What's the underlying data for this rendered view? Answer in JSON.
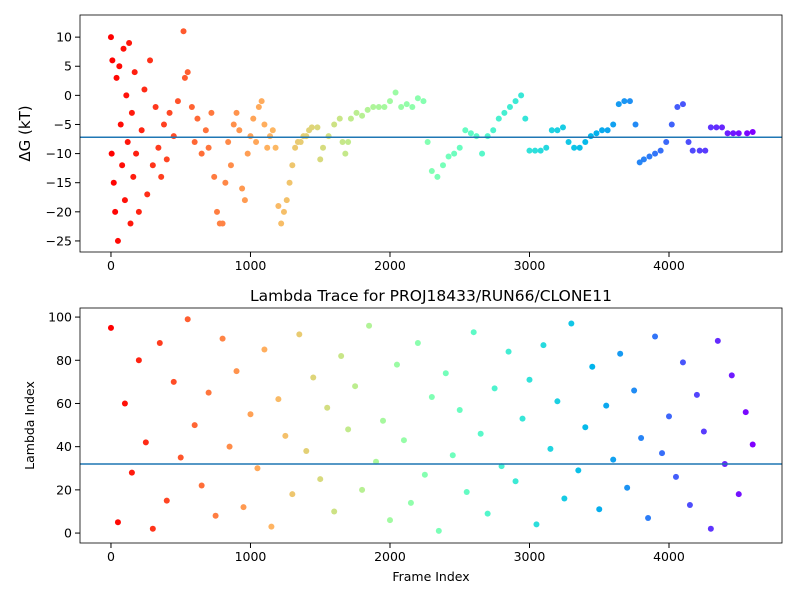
{
  "chart_data": [
    {
      "type": "scatter",
      "ylabel": "ΔG (kT)",
      "colormap": "rainbow_r",
      "hline": {
        "value": -7.2,
        "color": "#1f77b4"
      },
      "xlim": [
        -222,
        4810
      ],
      "ylim": [
        -26.9,
        13.8
      ],
      "xticks": [
        0,
        1000,
        2000,
        3000,
        4000
      ],
      "yticks": [
        10,
        5,
        0,
        {
          "value": -5,
          "label": "−5"
        },
        {
          "value": -10,
          "label": "−10"
        },
        {
          "value": -15,
          "label": "−15"
        },
        {
          "value": -20,
          "label": "−20"
        },
        {
          "value": -25,
          "label": "−25"
        }
      ],
      "x": [
        0,
        5,
        10,
        20,
        30,
        40,
        50,
        60,
        70,
        80,
        90,
        100,
        110,
        120,
        130,
        140,
        150,
        160,
        170,
        180,
        200,
        220,
        240,
        260,
        280,
        300,
        320,
        340,
        360,
        380,
        400,
        420,
        450,
        480,
        520,
        530,
        550,
        580,
        600,
        620,
        650,
        680,
        700,
        720,
        740,
        760,
        780,
        800,
        820,
        840,
        860,
        880,
        900,
        920,
        940,
        960,
        980,
        1000,
        1020,
        1040,
        1060,
        1080,
        1100,
        1120,
        1140,
        1160,
        1180,
        1200,
        1220,
        1240,
        1260,
        1280,
        1300,
        1320,
        1340,
        1360,
        1380,
        1400,
        1420,
        1440,
        1480,
        1500,
        1520,
        1560,
        1600,
        1640,
        1660,
        1680,
        1700,
        1720,
        1760,
        1800,
        1840,
        1880,
        1920,
        1960,
        2000,
        2040,
        2080,
        2120,
        2160,
        2200,
        2240,
        2270,
        2300,
        2340,
        2380,
        2420,
        2460,
        2500,
        2540,
        2580,
        2620,
        2660,
        2700,
        2740,
        2780,
        2820,
        2860,
        2900,
        2940,
        2970,
        3000,
        3040,
        3080,
        3120,
        3160,
        3200,
        3240,
        3280,
        3320,
        3360,
        3400,
        3440,
        3480,
        3520,
        3560,
        3600,
        3640,
        3680,
        3720,
        3760,
        3790,
        3820,
        3860,
        3900,
        3940,
        3980,
        4020,
        4060,
        4100,
        4140,
        4170,
        4220,
        4260,
        4300,
        4340,
        4380,
        4420,
        4460,
        4500,
        4560,
        4600
      ],
      "values": [
        10,
        -10,
        6,
        -15,
        -20,
        3,
        -25,
        5,
        -5,
        -12,
        8,
        -18,
        0,
        -8,
        9,
        -22,
        -3,
        -14,
        4,
        -10,
        -20,
        -6,
        1,
        -17,
        6,
        -12,
        -2,
        -9,
        -14,
        -5,
        -11,
        -3,
        -7,
        -1,
        11,
        3,
        4,
        -2,
        -8,
        -4,
        -10,
        -6,
        -9,
        -3,
        -14,
        -20,
        -22,
        -22,
        -15,
        -8,
        -12,
        -5,
        -3,
        -6,
        -16,
        -18,
        -10,
        -7,
        -4,
        -8,
        -2,
        -1,
        -5,
        -9,
        -7,
        -6,
        -9,
        -19,
        -22,
        -20,
        -18,
        -15,
        -12,
        -9,
        -8,
        -8,
        -7,
        -7,
        -6,
        -5.5,
        -5.5,
        -11,
        -9,
        -7,
        -5,
        -4,
        -8,
        -10,
        -8,
        -4,
        -3,
        -3.5,
        -2.5,
        -2,
        -2,
        -2,
        -1,
        0.5,
        -2,
        -1.5,
        -2,
        -0.5,
        -1,
        -8,
        -13,
        -14,
        -12,
        -10.5,
        -10,
        -9,
        -6,
        -6.5,
        -7,
        -10,
        -7,
        -6,
        -4,
        -3,
        -2,
        -1,
        0,
        -4,
        -9.5,
        -9.5,
        -9.5,
        -9,
        -6,
        -6,
        -5.5,
        -8,
        -9,
        -9,
        -8,
        -7,
        -6.5,
        -6,
        -6,
        -5,
        -1.5,
        -1,
        -1,
        -5,
        -11.5,
        -11,
        -10.5,
        -10,
        -9.5,
        -8,
        -5,
        -2,
        -1.5,
        -8,
        -9.5,
        -9.5,
        -9.5,
        -5.5,
        -5.5,
        -5.5,
        -6.5,
        -6.5,
        -6.5,
        -6.5,
        -6.3
      ]
    },
    {
      "type": "scatter",
      "title": "Lambda Trace for PROJ18433/RUN66/CLONE11",
      "xlabel": "Frame Index",
      "ylabel": "Lambda Index",
      "colormap": "rainbow_r",
      "hline": {
        "value": 32,
        "color": "#1f77b4"
      },
      "xlim": [
        -222,
        4810
      ],
      "ylim": [
        -4.6,
        104.2
      ],
      "xticks": [
        0,
        1000,
        2000,
        3000,
        4000
      ],
      "yticks": [
        0,
        20,
        40,
        60,
        80,
        100
      ],
      "x": [
        0,
        50,
        100,
        150,
        200,
        250,
        300,
        350,
        400,
        450,
        500,
        550,
        600,
        650,
        700,
        750,
        800,
        850,
        900,
        950,
        1000,
        1050,
        1100,
        1150,
        1200,
        1250,
        1300,
        1350,
        1400,
        1450,
        1500,
        1550,
        1600,
        1650,
        1700,
        1750,
        1800,
        1850,
        1900,
        1950,
        2000,
        2050,
        2100,
        2150,
        2200,
        2250,
        2300,
        2350,
        2400,
        2450,
        2500,
        2550,
        2600,
        2650,
        2700,
        2750,
        2800,
        2850,
        2900,
        2950,
        3000,
        3050,
        3100,
        3150,
        3200,
        3250,
        3300,
        3350,
        3400,
        3450,
        3500,
        3550,
        3600,
        3650,
        3700,
        3750,
        3800,
        3850,
        3900,
        3950,
        4000,
        4050,
        4100,
        4150,
        4200,
        4250,
        4300,
        4350,
        4400,
        4450,
        4500,
        4550,
        4600
      ],
      "values": [
        95,
        5,
        60,
        28,
        80,
        42,
        2,
        88,
        15,
        70,
        35,
        99,
        50,
        22,
        65,
        8,
        90,
        40,
        75,
        12,
        55,
        30,
        85,
        3,
        62,
        45,
        18,
        92,
        38,
        72,
        25,
        58,
        10,
        82,
        48,
        68,
        20,
        96,
        33,
        52,
        6,
        78,
        43,
        14,
        88,
        27,
        63,
        1,
        74,
        36,
        57,
        19,
        93,
        46,
        9,
        67,
        31,
        84,
        24,
        53,
        71,
        4,
        87,
        39,
        61,
        16,
        97,
        29,
        49,
        77,
        11,
        59,
        34,
        83,
        21,
        66,
        44,
        7,
        91,
        37,
        54,
        26,
        79,
        13,
        64,
        47,
        2,
        89,
        32,
        73,
        18,
        56,
        41
      ]
    }
  ]
}
